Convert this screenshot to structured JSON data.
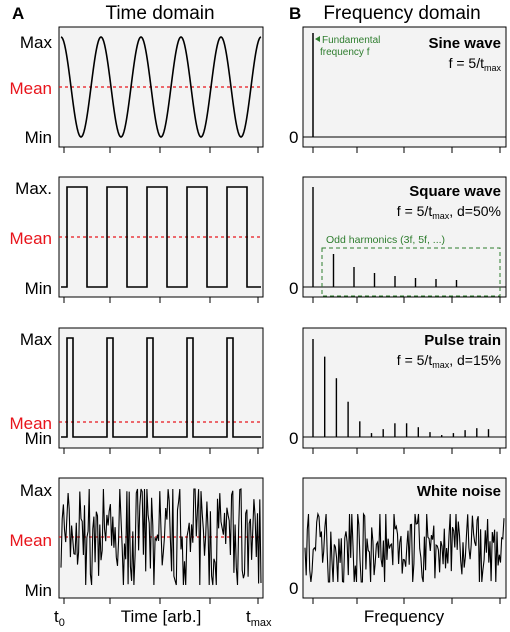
{
  "panels": {
    "a_letter": "A",
    "a_title": "Time domain",
    "b_letter": "B",
    "b_title": "Frequency domain"
  },
  "time_axis": {
    "label": "Time [arb.]",
    "t0_base": "t",
    "t0_sub": "0",
    "tmax_base": "t",
    "tmax_sub": "max"
  },
  "freq_axis": {
    "label": "Frequency",
    "zero": "0"
  },
  "colors": {
    "panel_bg": "#f3f3f3",
    "mean_line": "#e8141b",
    "annotation": "#2e7d2e",
    "trace": "#000000"
  },
  "rows": [
    {
      "y_max_label": "Max",
      "y_mean_label": "Mean",
      "y_min_label": "Min",
      "title": "Sine wave",
      "f_pre": "f = 5/t",
      "f_sub": "max",
      "f_post": "",
      "annotation_lines": [
        "Fundamental",
        "frequency f"
      ]
    },
    {
      "y_max_label": "Max.",
      "y_mean_label": "Mean",
      "y_min_label": "Min",
      "title": "Square wave",
      "f_pre": "f = 5/t",
      "f_sub": "max",
      "f_post": ", d=50%",
      "annotation": "Odd harmonics (3f, 5f, ...)"
    },
    {
      "y_max_label": "Max",
      "y_mean_label": "Mean",
      "y_min_label": "Min",
      "title": "Pulse train",
      "f_pre": "f = 5/t",
      "f_sub": "max",
      "f_post": ", d=15%"
    },
    {
      "y_max_label": "Max",
      "y_mean_label": "Mean",
      "y_min_label": "Min",
      "title": "White noise"
    }
  ],
  "signals": {
    "cycles": 5,
    "square_duty": 0.5,
    "pulse_duty": 0.15,
    "pulse_mean_level": 0.15,
    "square_harmonic_heights": [
      1,
      0.33,
      0.2,
      0.14,
      0.11,
      0.09,
      0.08,
      0.07
    ],
    "pulse_harmonic_heights": [
      1,
      0.82,
      0.6,
      0.36,
      0.16,
      0.04,
      0.08,
      0.14,
      0.14,
      0.1,
      0.05,
      0.02,
      0.04,
      0.07,
      0.09,
      0.08
    ]
  }
}
